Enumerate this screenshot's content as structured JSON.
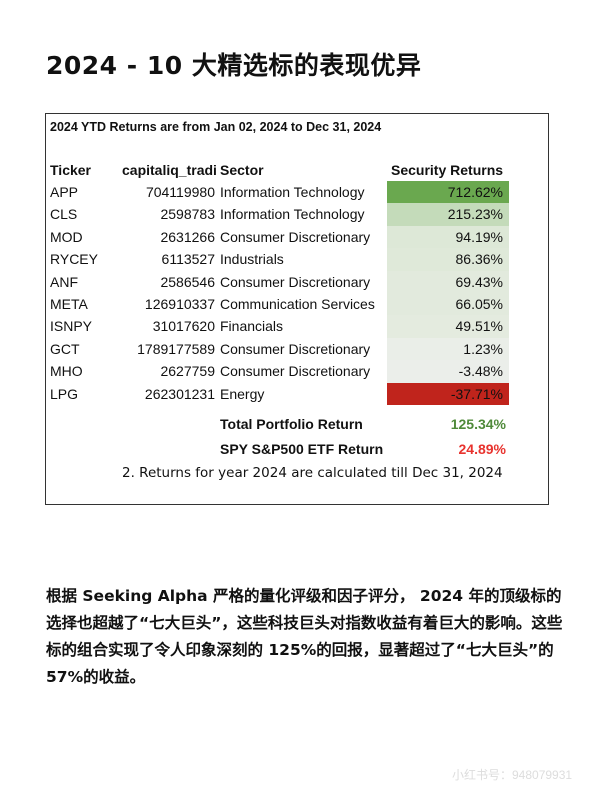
{
  "title": "2024 - 10 大精选标的表现优异",
  "table": {
    "note": "2024 YTD Returns are from Jan 02, 2024 to Dec 31, 2024",
    "headers": {
      "ticker": "Ticker",
      "id": "capitaliq_tradi",
      "sector": "Sector",
      "returns": "Security Returns"
    },
    "rows": [
      {
        "ticker": "APP",
        "id": "704119980",
        "sector": "Information Technology",
        "ret": "712.62%",
        "bg": "#6aa84f"
      },
      {
        "ticker": "CLS",
        "id": "2598783",
        "sector": "Information Technology",
        "ret": "215.23%",
        "bg": "#c4dbba"
      },
      {
        "ticker": "MOD",
        "id": "2631266",
        "sector": "Consumer Discretionary",
        "ret": "94.19%",
        "bg": "#dde8d7"
      },
      {
        "ticker": "RYCEY",
        "id": "6113527",
        "sector": "Industrials",
        "ret": "86.36%",
        "bg": "#dfe9d9"
      },
      {
        "ticker": "ANF",
        "id": "2586546",
        "sector": "Consumer Discretionary",
        "ret": "69.43%",
        "bg": "#e2eadd"
      },
      {
        "ticker": "META",
        "id": "126910337",
        "sector": "Communication Services",
        "ret": "66.05%",
        "bg": "#e2eadd"
      },
      {
        "ticker": "ISNPY",
        "id": "31017620",
        "sector": "Financials",
        "ret": "49.51%",
        "bg": "#e4ebdf"
      },
      {
        "ticker": "GCT",
        "id": "1789177589",
        "sector": "Consumer Discretionary",
        "ret": "1.23%",
        "bg": "#eaeee8"
      },
      {
        "ticker": "MHO",
        "id": "2627759",
        "sector": "Consumer Discretionary",
        "ret": "-3.48%",
        "bg": "#ebeeea"
      },
      {
        "ticker": "LPG",
        "id": "262301231",
        "sector": "Energy",
        "ret": "-37.71%",
        "bg": "#c0241c"
      }
    ],
    "total_label": "Total Portfolio Return",
    "total_value": "125.34%",
    "total_color": "#4f8a3a",
    "spy_label": "SPY S&P500 ETF Return",
    "spy_value": "24.89%",
    "spy_color": "#e8332e",
    "footnote": "2. Returns for year 2024 are calculated till Dec 31, 2024"
  },
  "paragraph": "根据 Seeking Alpha 严格的量化评级和因子评分， 2024 年的顶级标的选择也超越了“七大巨头”，这些科技巨头对指数收益有着巨大的影响。这些标的组合实现了令人印象深刻的 125%的回报，显著超过了“七大巨头”的 57%的收益。",
  "watermark": "小红书号：948079931"
}
